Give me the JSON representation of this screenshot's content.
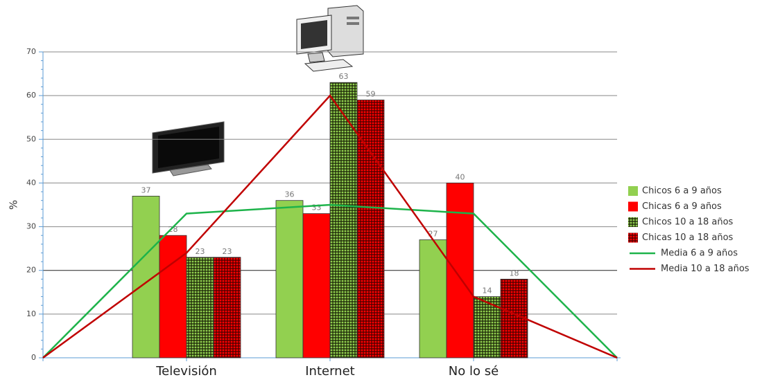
{
  "chart_data": {
    "type": "bar",
    "y_label": "%",
    "categories": [
      null,
      "Televisión",
      "Internet",
      "No lo sé",
      null
    ],
    "ylim": [
      0,
      70
    ],
    "yticks": [
      0,
      10,
      20,
      30,
      40,
      50,
      60,
      70
    ],
    "grid": true,
    "series": [
      {
        "name": "Chicos 6 a 9 años",
        "color": "#92d050",
        "values": [
          null,
          37,
          36,
          27,
          null
        ]
      },
      {
        "name": "Chicas 6 a 9 años",
        "color": "#ff0000",
        "values": [
          null,
          28,
          33,
          40,
          null
        ]
      },
      {
        "name": "Chicos 10 a 18 años",
        "color": "#92d050",
        "pattern": "dots",
        "values": [
          null,
          23,
          63,
          14,
          null
        ]
      },
      {
        "name": "Chicas 10 a 18 años",
        "color": "#ff0000",
        "pattern": "dots",
        "values": [
          null,
          23,
          59,
          18,
          null
        ]
      },
      {
        "name": "Media 6 a 9 años",
        "type": "line",
        "color": "#1db34a",
        "values": [
          0,
          33,
          35,
          33,
          0
        ]
      },
      {
        "name": "Media 10 a 18 años",
        "type": "line",
        "color": "#c00000",
        "values": [
          0,
          24,
          60,
          14,
          0
        ]
      }
    ]
  }
}
